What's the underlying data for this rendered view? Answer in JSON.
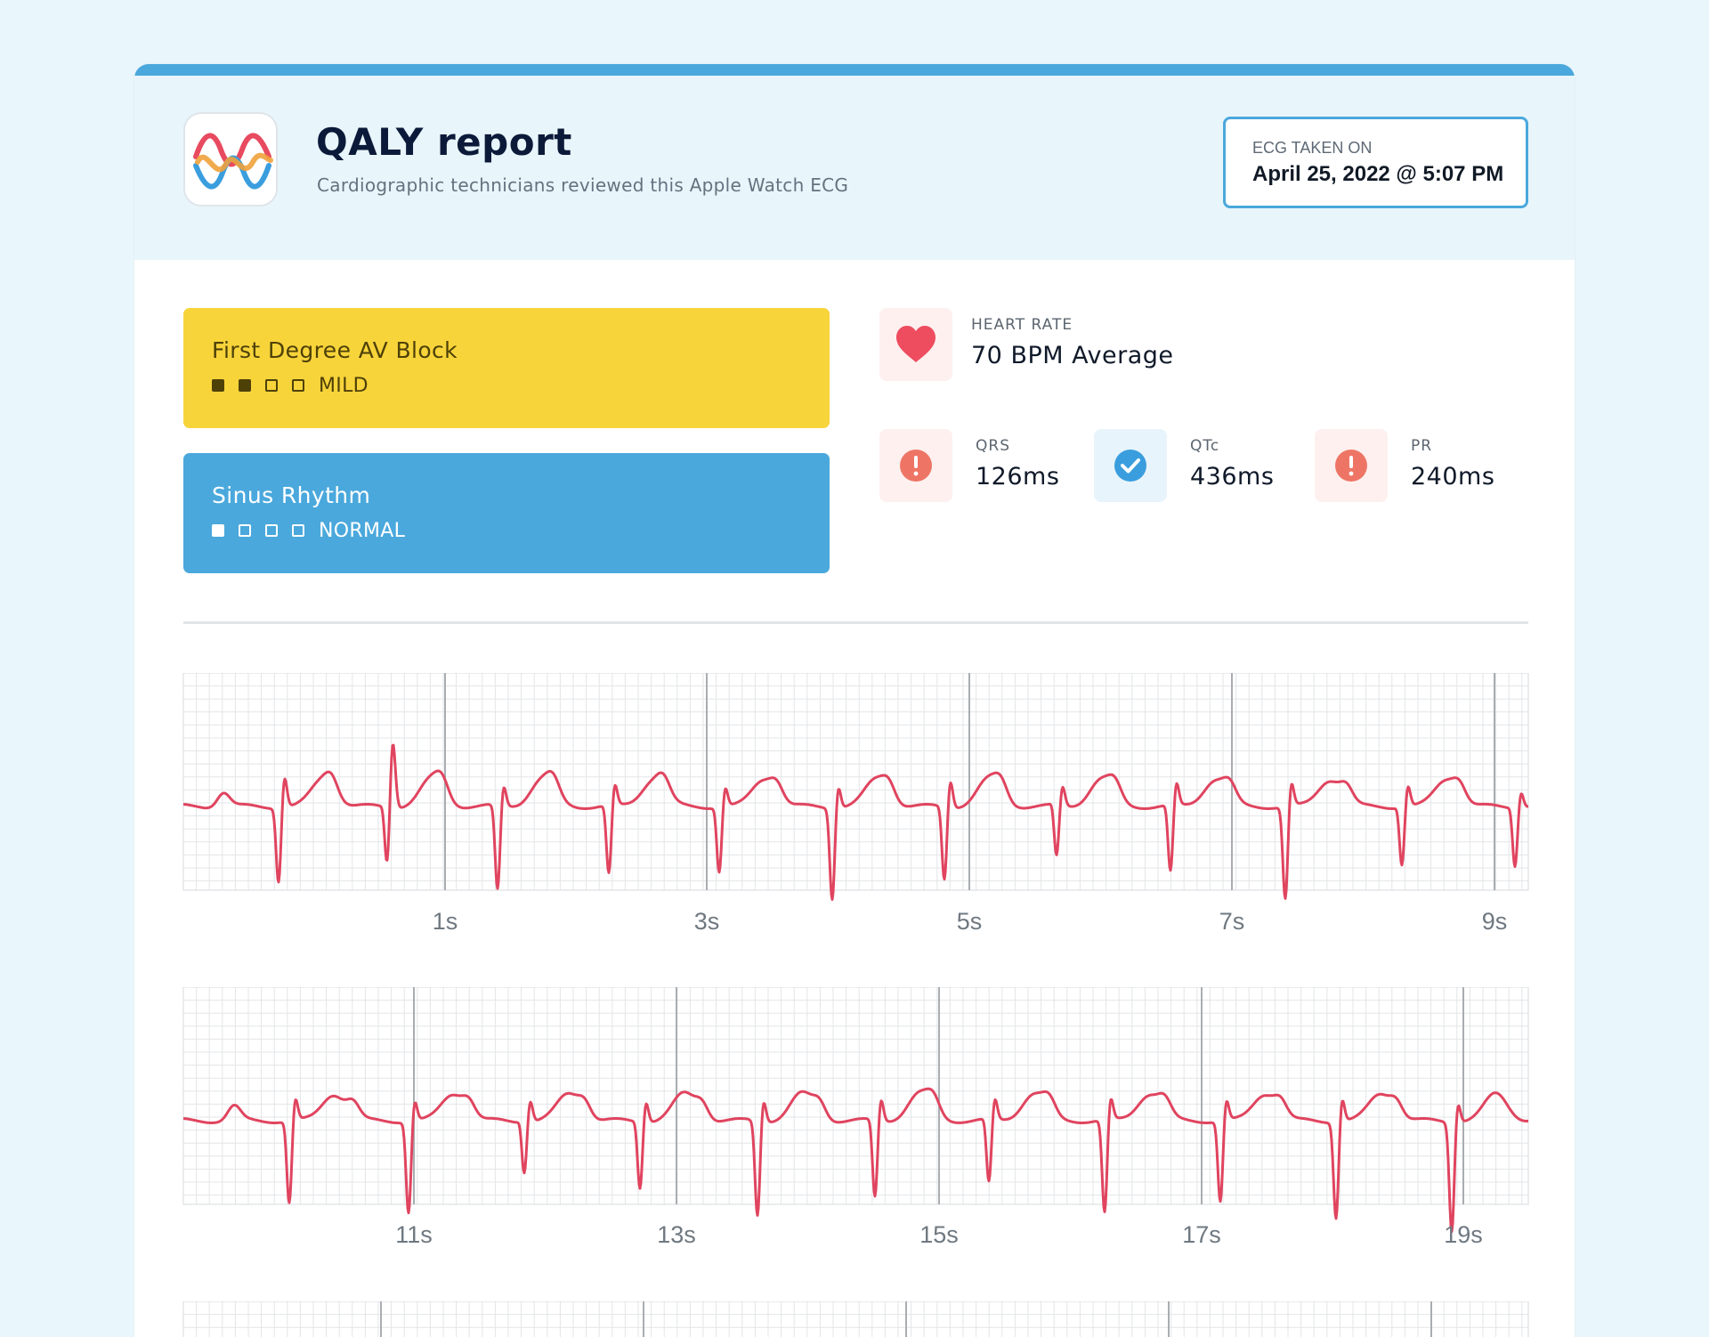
{
  "report": {
    "title": "QALY report",
    "subtitle": "Cardiographic technicians reviewed this Apple Watch ECG",
    "ecg_taken_label": "ECG TAKEN ON",
    "ecg_taken_value": "April 25, 2022 @ 5:07 PM"
  },
  "colors": {
    "background": "#e9f6fc",
    "accent": "#4aa8dc",
    "mild": "#f8d43b",
    "normal": "#4aa8dc",
    "trace": "#e0445f",
    "warning": "#ee7565",
    "ok": "#3a9ede"
  },
  "findings": [
    {
      "title": "First Degree AV Block",
      "severity_label": "MILD",
      "level": 2,
      "of": 4
    },
    {
      "title": "Sinus Rhythm",
      "severity_label": "NORMAL",
      "level": 1,
      "of": 4
    }
  ],
  "heart_rate": {
    "label": "HEART RATE",
    "value": "70 BPM Average",
    "icon": "heart-icon"
  },
  "intervals": [
    {
      "label": "QRS",
      "value": "126ms",
      "icon": "alert-icon",
      "status": "warning"
    },
    {
      "label": "QTc",
      "value": "436ms",
      "icon": "check-icon",
      "status": "ok"
    },
    {
      "label": "PR",
      "value": "240ms",
      "icon": "alert-icon",
      "status": "warning"
    }
  ],
  "ecg_strips": [
    {
      "tick_labels": [
        "1s",
        "3s",
        "5s",
        "7s",
        "9s"
      ]
    },
    {
      "tick_labels": [
        "11s",
        "13s",
        "15s",
        "17s",
        "19s"
      ]
    }
  ]
}
